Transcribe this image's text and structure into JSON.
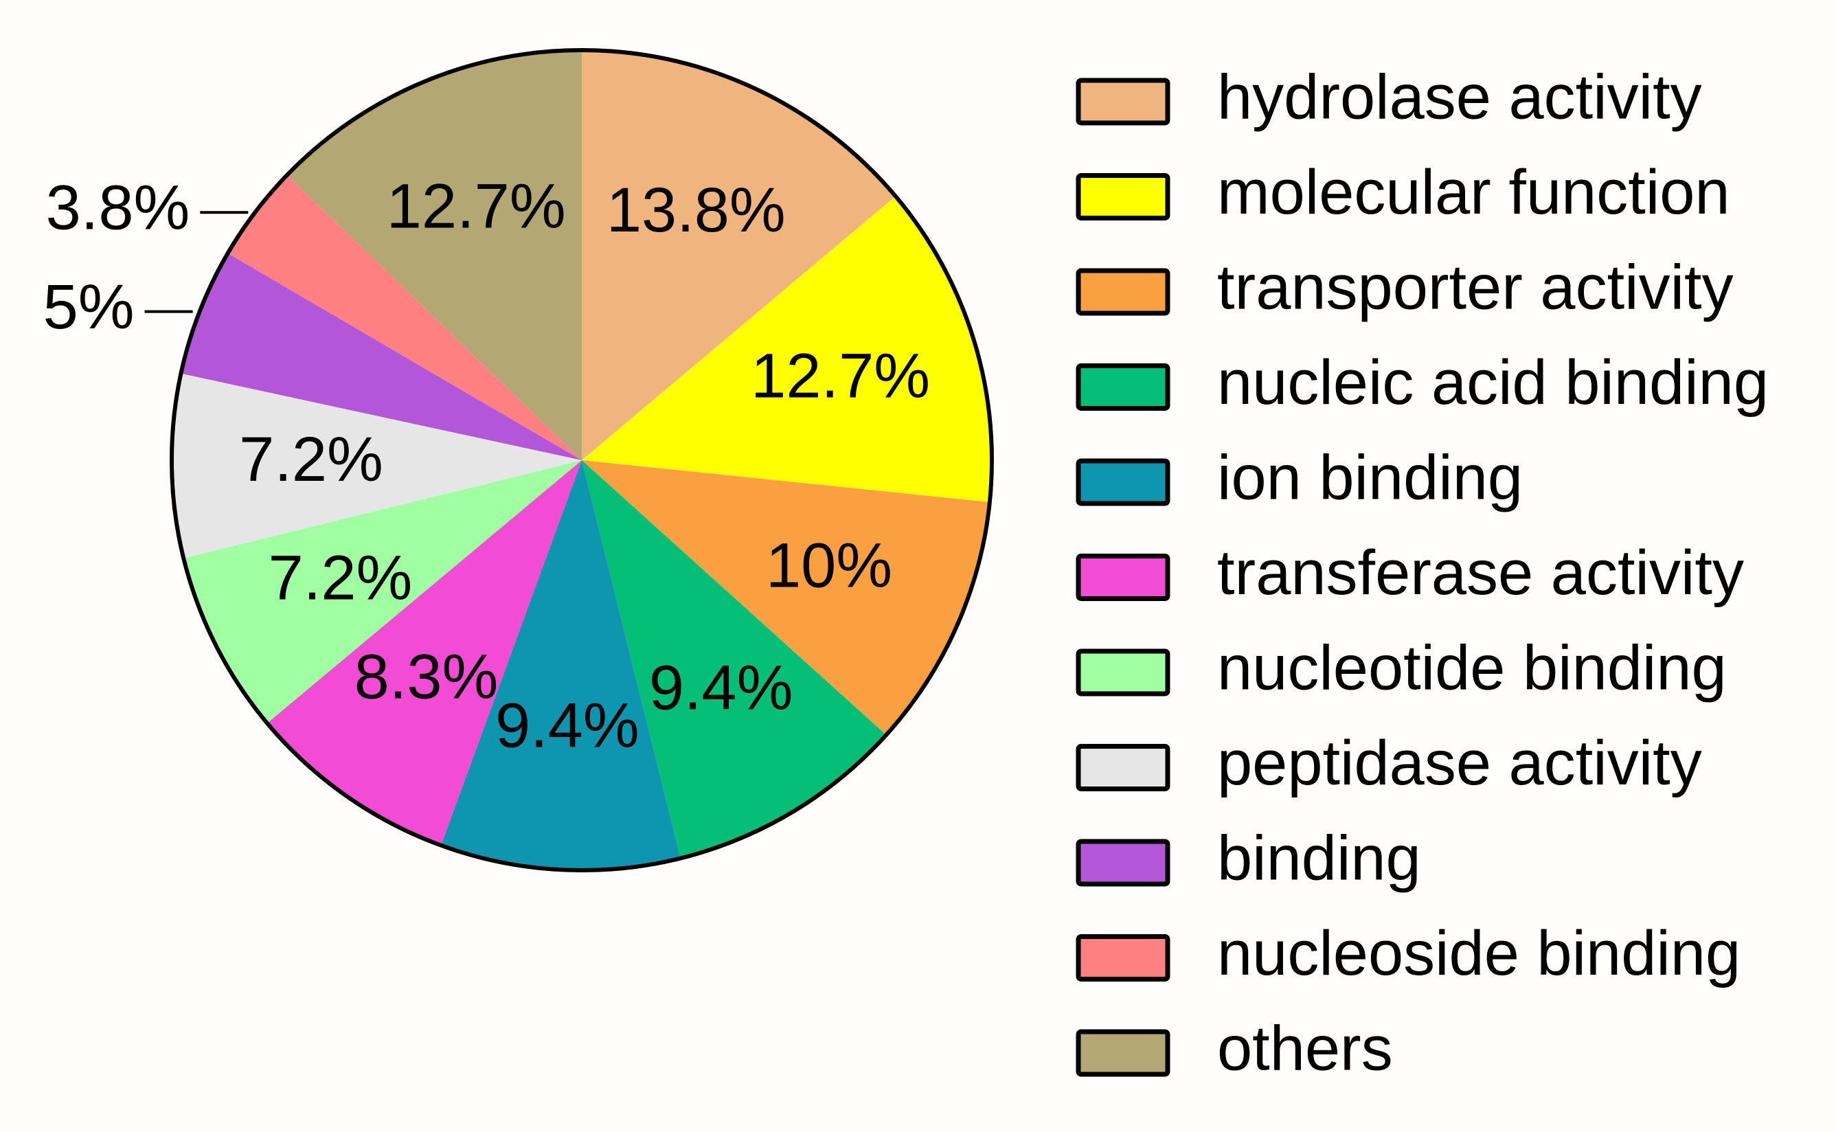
{
  "chart_data": {
    "type": "pie",
    "categories": [
      "hydrolase activity",
      "molecular function",
      "transporter activity",
      "nucleic acid binding",
      "ion binding",
      "transferase activity",
      "nucleotide binding",
      "peptidase activity",
      "binding",
      "nucleoside binding",
      "others"
    ],
    "values": [
      13.8,
      12.7,
      10,
      9.4,
      9.4,
      8.3,
      7.2,
      7.2,
      5,
      3.8,
      12.7
    ],
    "value_labels": [
      "13.8%",
      "12.7%",
      "10%",
      "9.4%",
      "9.4%",
      "8.3%",
      "7.2%",
      "7.2%",
      "5%",
      "3.8%",
      "12.7%"
    ],
    "colors": [
      "#F0B47E",
      "#FFFF00",
      "#FBA040",
      "#05BF76",
      "#0E95B0",
      "#F24BD4",
      "#A0FFA0",
      "#E6E6E6",
      "#B456D8",
      "#FF8080",
      "#B3A774"
    ],
    "legend": "right"
  }
}
